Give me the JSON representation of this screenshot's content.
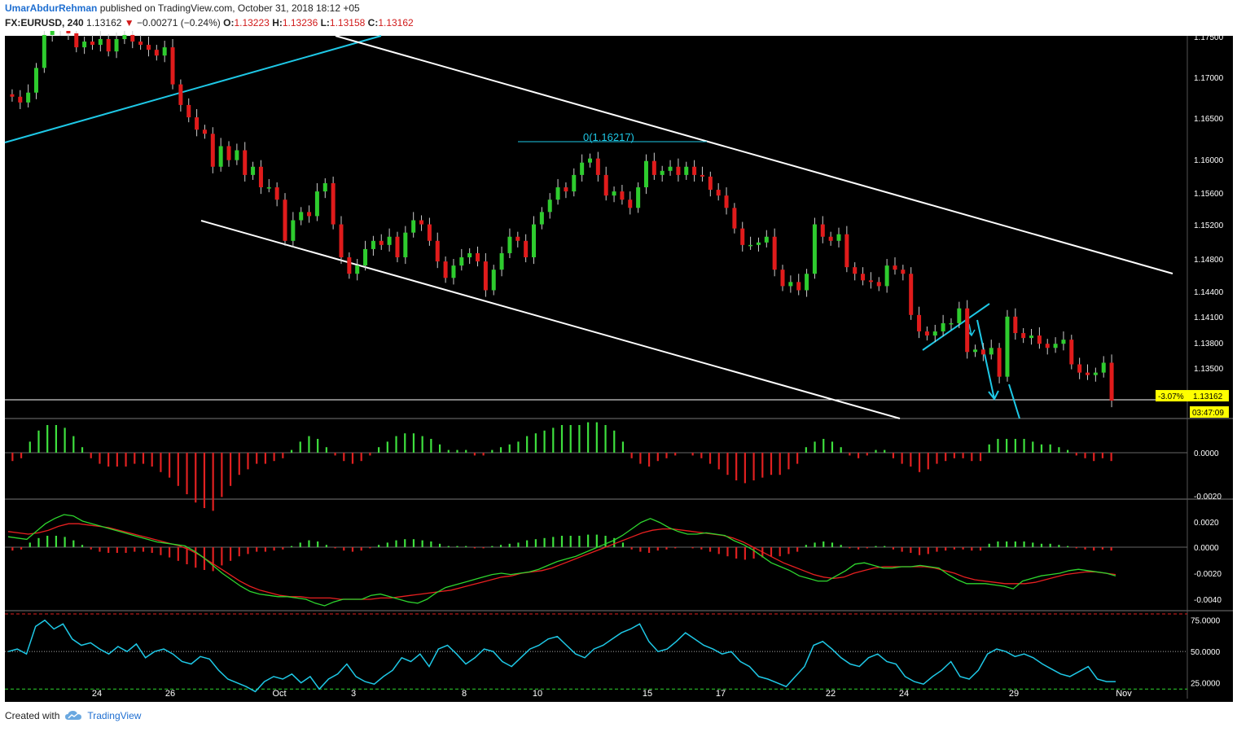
{
  "header": {
    "author": "UmarAbdurRehman",
    "published_text": "published on TradingView.com, October 31, 2018 18:12 +05",
    "symbol": "FX:EURUSD, 240",
    "last": "1.13162",
    "change_arrow": "▼",
    "change": "−0.00271 (−0.24%)",
    "o_label": "O:",
    "o_value": "1.13223",
    "h_label": "H:",
    "h_value": "1.13236",
    "l_label": "L:",
    "l_value": "1.13158",
    "c_label": "C:",
    "c_value": "1.13162"
  },
  "footer": {
    "created_with": "Created with",
    "brand": "TradingView",
    "logo_icon": "tradingview-cloud-icon"
  },
  "colors": {
    "bg": "#000000",
    "up": "#2ecc2e",
    "down": "#e01b1b",
    "cyan": "#1ec8e6",
    "white": "#ffffff",
    "label_yellow": "#ffff00"
  },
  "chart_data": {
    "type": "candlestick",
    "symbol": "FX:EURUSD",
    "timeframe": "240",
    "x_ticks": [
      "24",
      "26",
      "Oct",
      "3",
      "8",
      "10",
      "15",
      "17",
      "22",
      "24",
      "29",
      "Nov"
    ],
    "price_axis": {
      "ticks": [
        "1.17500",
        "1.17000",
        "1.16500",
        "1.16000",
        "1.15600",
        "1.15200",
        "1.14800",
        "1.14400",
        "1.14100",
        "1.13800",
        "1.13500"
      ],
      "current_price_label": "1.13162",
      "current_pct_label": "-3.07%",
      "countdown_label": "03:47:09"
    },
    "annotations": {
      "fib_label": "0(1.16217)"
    },
    "close_series": [
      1.1685,
      1.1678,
      1.169,
      1.172,
      1.176,
      1.177,
      1.1765,
      1.1762,
      1.1745,
      1.1752,
      1.1748,
      1.1755,
      1.174,
      1.1755,
      1.176,
      1.1752,
      1.1748,
      1.1742,
      1.1735,
      1.1745,
      1.17,
      1.1675,
      1.166,
      1.1645,
      1.164,
      1.16,
      1.1625,
      1.1608,
      1.162,
      1.159,
      1.16,
      1.1575,
      1.1575,
      1.156,
      1.151,
      1.1535,
      1.1545,
      1.154,
      1.157,
      1.158,
      1.153,
      1.149,
      1.147,
      1.148,
      1.15,
      1.151,
      1.1505,
      1.1515,
      1.149,
      1.152,
      1.1535,
      1.153,
      1.151,
      1.1485,
      1.1465,
      1.148,
      1.149,
      1.1495,
      1.1485,
      1.145,
      1.1475,
      1.1495,
      1.1515,
      1.151,
      1.149,
      1.153,
      1.1545,
      1.156,
      1.1575,
      1.157,
      1.159,
      1.1605,
      1.161,
      1.159,
      1.1565,
      1.157,
      1.156,
      1.155,
      1.1575,
      1.1607,
      1.159,
      1.1595,
      1.16,
      1.159,
      1.16,
      1.159,
      1.1588,
      1.1572,
      1.1565,
      1.155,
      1.1525,
      1.1505,
      1.1505,
      1.1508,
      1.1515,
      1.1475,
      1.1455,
      1.146,
      1.145,
      1.147,
      1.153,
      1.1515,
      1.151,
      1.1518,
      1.1478,
      1.147,
      1.1462,
      1.146,
      1.1455,
      1.148,
      1.1475,
      1.147,
      1.142,
      1.14,
      1.1395,
      1.14,
      1.141,
      1.141,
      1.1428,
      1.1375,
      1.1378,
      1.1372,
      1.138,
      1.1345,
      1.1418,
      1.1398,
      1.1392,
      1.1395,
      1.1385,
      1.138,
      1.1385,
      1.139,
      1.136,
      1.135,
      1.1347,
      1.135,
      1.1362,
      1.1316
    ],
    "histogram_1": [
      -0.3,
      -0.2,
      0.4,
      0.8,
      1.0,
      1.0,
      0.9,
      0.6,
      0.2,
      -0.2,
      -0.4,
      -0.5,
      -0.5,
      -0.5,
      -0.4,
      -0.4,
      -0.5,
      -0.7,
      -0.9,
      -1.2,
      -1.5,
      -1.8,
      -2.0,
      -2.1,
      -1.6,
      -1.2,
      -0.8,
      -0.6,
      -0.4,
      -0.4,
      -0.3,
      -0.2,
      0.1,
      0.4,
      0.6,
      0.5,
      0.2,
      -0.1,
      -0.3,
      -0.4,
      -0.3,
      -0.1,
      0.2,
      0.4,
      0.6,
      0.7,
      0.7,
      0.6,
      0.5,
      0.3,
      0.1,
      0.1,
      0.1,
      -0.1,
      -0.1,
      0.1,
      0.2,
      0.3,
      0.4,
      0.6,
      0.7,
      0.8,
      0.9,
      1.0,
      1.0,
      1.0,
      1.1,
      1.1,
      1.0,
      0.8,
      0.4,
      -0.2,
      -0.4,
      -0.5,
      -0.3,
      -0.2,
      -0.1,
      0.0,
      -0.1,
      -0.2,
      -0.4,
      -0.6,
      -0.8,
      -1.0,
      -1.1,
      -1.0,
      -0.9,
      -0.8,
      -0.8,
      -0.6,
      -0.4,
      0.2,
      0.4,
      0.5,
      0.4,
      0.2,
      -0.1,
      -0.2,
      -0.1,
      0.1,
      0.1,
      -0.2,
      -0.4,
      -0.5,
      -0.7,
      -0.6,
      -0.4,
      -0.3,
      -0.2,
      -0.2,
      -0.3,
      -0.3,
      0.3,
      0.5,
      0.5,
      0.5,
      0.5,
      0.4,
      0.3,
      0.3,
      0.2,
      0.1,
      -0.1,
      -0.2,
      -0.3,
      -0.2,
      -0.3
    ],
    "macd_line": [
      0.0008,
      0.0007,
      0.0006,
      0.0012,
      0.0018,
      0.0022,
      0.0025,
      0.0024,
      0.002,
      0.0018,
      0.0016,
      0.0014,
      0.0012,
      0.001,
      0.0008,
      0.0006,
      0.0004,
      0.0003,
      0.0002,
      0.0001,
      -0.0003,
      -0.0008,
      -0.0014,
      -0.002,
      -0.0025,
      -0.003,
      -0.0034,
      -0.0036,
      -0.0037,
      -0.0038,
      -0.0038,
      -0.0039,
      -0.004,
      -0.0043,
      -0.0045,
      -0.0042,
      -0.004,
      -0.004,
      -0.004,
      -0.0037,
      -0.0036,
      -0.0038,
      -0.004,
      -0.0042,
      -0.0043,
      -0.004,
      -0.0035,
      -0.0031,
      -0.0029,
      -0.0027,
      -0.0025,
      -0.0023,
      -0.0021,
      -0.002,
      -0.0021,
      -0.002,
      -0.0019,
      -0.0017,
      -0.0014,
      -0.0011,
      -0.0009,
      -0.0007,
      -0.0004,
      -0.0001,
      0.0002,
      0.0005,
      0.0009,
      0.0014,
      0.0019,
      0.0022,
      0.0019,
      0.0015,
      0.0012,
      0.001,
      0.001,
      0.0011,
      0.001,
      0.0009,
      0.0005,
      0.0002,
      -0.0002,
      -0.0007,
      -0.0012,
      -0.0015,
      -0.0018,
      -0.0022,
      -0.0024,
      -0.0026,
      -0.0026,
      -0.0022,
      -0.0018,
      -0.0013,
      -0.0012,
      -0.0014,
      -0.0016,
      -0.0016,
      -0.0015,
      -0.0015,
      -0.0014,
      -0.0015,
      -0.0016,
      -0.0021,
      -0.0025,
      -0.0028,
      -0.0028,
      -0.0028,
      -0.0029,
      -0.003,
      -0.0032,
      -0.0026,
      -0.0024,
      -0.0022,
      -0.0021,
      -0.002,
      -0.0018,
      -0.0017,
      -0.0018,
      -0.0019,
      -0.002,
      -0.0022
    ],
    "signal_line": [
      0.0012,
      0.0011,
      0.001,
      0.0011,
      0.0013,
      0.0016,
      0.0018,
      0.0018,
      0.0017,
      0.0016,
      0.0015,
      0.0013,
      0.0011,
      0.0009,
      0.0007,
      0.0005,
      0.0003,
      0.0001,
      -0.0002,
      -0.0006,
      -0.0011,
      -0.0016,
      -0.0021,
      -0.0026,
      -0.003,
      -0.0033,
      -0.0035,
      -0.0037,
      -0.0038,
      -0.0038,
      -0.0039,
      -0.0039,
      -0.0039,
      -0.004,
      -0.004,
      -0.004,
      -0.004,
      -0.0039,
      -0.0039,
      -0.0038,
      -0.0037,
      -0.0036,
      -0.0035,
      -0.0034,
      -0.0033,
      -0.0031,
      -0.0029,
      -0.0027,
      -0.0025,
      -0.0023,
      -0.0022,
      -0.002,
      -0.0019,
      -0.0018,
      -0.0016,
      -0.0013,
      -0.001,
      -0.0007,
      -0.0004,
      -0.0001,
      0.0002,
      0.0005,
      0.0008,
      0.0011,
      0.0013,
      0.0014,
      0.0014,
      0.0013,
      0.0012,
      0.0011,
      0.001,
      0.0009,
      0.0007,
      0.0004,
      0.0,
      -0.0004,
      -0.0008,
      -0.0012,
      -0.0015,
      -0.0018,
      -0.0021,
      -0.0023,
      -0.0024,
      -0.0023,
      -0.002,
      -0.0018,
      -0.0016,
      -0.0015,
      -0.0015,
      -0.0015,
      -0.0015,
      -0.0015,
      -0.0016,
      -0.0018,
      -0.002,
      -0.0023,
      -0.0025,
      -0.0026,
      -0.0027,
      -0.0028,
      -0.0028,
      -0.0028,
      -0.0027,
      -0.0025,
      -0.0023,
      -0.0021,
      -0.002,
      -0.0019,
      -0.0019,
      -0.002,
      -0.0021
    ],
    "macd_axis_ticks": [
      "0.0020",
      "0.0000",
      "-0.0020",
      "-0.0040"
    ],
    "hist_axis_ticks": [
      "0.0000",
      "-0.0020"
    ],
    "rsi_series": [
      50,
      52,
      48,
      70,
      75,
      68,
      72,
      60,
      55,
      57,
      52,
      48,
      54,
      50,
      56,
      45,
      50,
      52,
      48,
      42,
      40,
      46,
      44,
      35,
      28,
      25,
      22,
      18,
      26,
      30,
      28,
      32,
      25,
      30,
      20,
      28,
      32,
      40,
      30,
      26,
      24,
      30,
      35,
      45,
      42,
      48,
      38,
      52,
      55,
      48,
      40,
      45,
      52,
      50,
      42,
      38,
      45,
      52,
      55,
      60,
      62,
      55,
      48,
      45,
      52,
      55,
      60,
      65,
      68,
      72,
      58,
      50,
      52,
      58,
      65,
      60,
      55,
      52,
      48,
      50,
      42,
      38,
      30,
      28,
      25,
      22,
      30,
      38,
      55,
      58,
      52,
      45,
      40,
      38,
      45,
      48,
      42,
      40,
      30,
      26,
      24,
      30,
      35,
      42,
      30,
      28,
      35,
      48,
      52,
      50,
      46,
      48,
      45,
      40,
      36,
      32,
      30,
      34,
      38,
      28,
      26,
      26
    ],
    "rsi_axis_ticks": [
      "75.0000",
      "50.0000",
      "25.0000"
    ],
    "rsi_levels": {
      "upper": 80,
      "middle": 50,
      "lower": 20
    }
  }
}
